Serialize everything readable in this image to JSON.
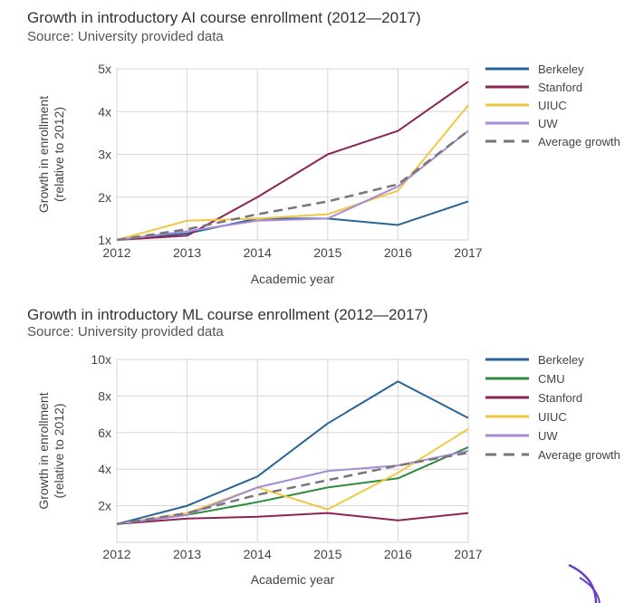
{
  "chart_data": [
    {
      "type": "line",
      "title": "Growth in introductory AI course enrollment (2012—2017)",
      "subtitle": "Source: University provided data",
      "xlabel": "Academic year",
      "ylabel": "Growth in enrollment (relative to 2012)",
      "x": [
        2012,
        2013,
        2014,
        2015,
        2016,
        2017
      ],
      "x_tick_labels": [
        "2012",
        "2013",
        "2014",
        "2015",
        "2016",
        "2017"
      ],
      "ylim": [
        1,
        5
      ],
      "y_ticks": [
        1,
        2,
        3,
        4,
        5
      ],
      "y_tick_labels": [
        "1x",
        "2x",
        "3x",
        "4x",
        "5x"
      ],
      "grid": true,
      "legend_position": "right",
      "series": [
        {
          "name": "Berkeley",
          "color": "#2a6496",
          "dashed": false,
          "values": [
            1.0,
            1.15,
            1.5,
            1.5,
            1.35,
            1.9
          ]
        },
        {
          "name": "Stanford",
          "color": "#8b2556",
          "dashed": false,
          "values": [
            1.0,
            1.1,
            2.0,
            3.0,
            3.55,
            4.7
          ]
        },
        {
          "name": "UIUC",
          "color": "#f2c744",
          "dashed": false,
          "values": [
            1.0,
            1.45,
            1.5,
            1.6,
            2.15,
            4.15
          ]
        },
        {
          "name": "UW",
          "color": "#a78bd6",
          "dashed": false,
          "values": [
            1.0,
            1.2,
            1.45,
            1.5,
            2.25,
            3.55
          ]
        },
        {
          "name": "Average growth",
          "color": "#777777",
          "dashed": true,
          "values": [
            1.0,
            1.25,
            1.6,
            1.9,
            2.3,
            3.55
          ]
        }
      ]
    },
    {
      "type": "line",
      "title": "Growth in introductory ML course enrollment (2012—2017)",
      "subtitle": "Source: University provided data",
      "xlabel": "Academic year",
      "ylabel": "Growth in enrollment (relative to 2012)",
      "x": [
        2012,
        2013,
        2014,
        2015,
        2016,
        2017
      ],
      "x_tick_labels": [
        "2012",
        "2013",
        "2014",
        "2015",
        "2016",
        "2017"
      ],
      "ylim": [
        0,
        10
      ],
      "y_ticks": [
        2,
        4,
        6,
        8,
        10
      ],
      "y_tick_labels": [
        "2x",
        "4x",
        "6x",
        "8x",
        "10x"
      ],
      "grid": true,
      "legend_position": "right",
      "series": [
        {
          "name": "Berkeley",
          "color": "#2a6496",
          "dashed": false,
          "values": [
            1.0,
            2.0,
            3.6,
            6.5,
            8.8,
            6.8
          ]
        },
        {
          "name": "CMU",
          "color": "#2e8b3e",
          "dashed": false,
          "values": [
            1.0,
            1.5,
            2.2,
            3.0,
            3.5,
            5.2
          ]
        },
        {
          "name": "Stanford",
          "color": "#8b2556",
          "dashed": false,
          "values": [
            1.0,
            1.3,
            1.4,
            1.6,
            1.2,
            1.6
          ]
        },
        {
          "name": "UIUC",
          "color": "#f2c744",
          "dashed": false,
          "values": [
            1.0,
            1.6,
            3.0,
            1.8,
            3.8,
            6.2
          ]
        },
        {
          "name": "UW",
          "color": "#a78bd6",
          "dashed": false,
          "values": [
            1.0,
            1.5,
            3.0,
            3.9,
            4.2,
            5.0
          ]
        },
        {
          "name": "Average growth",
          "color": "#777777",
          "dashed": true,
          "values": [
            1.0,
            1.6,
            2.6,
            3.4,
            4.2,
            4.9
          ]
        }
      ]
    }
  ]
}
